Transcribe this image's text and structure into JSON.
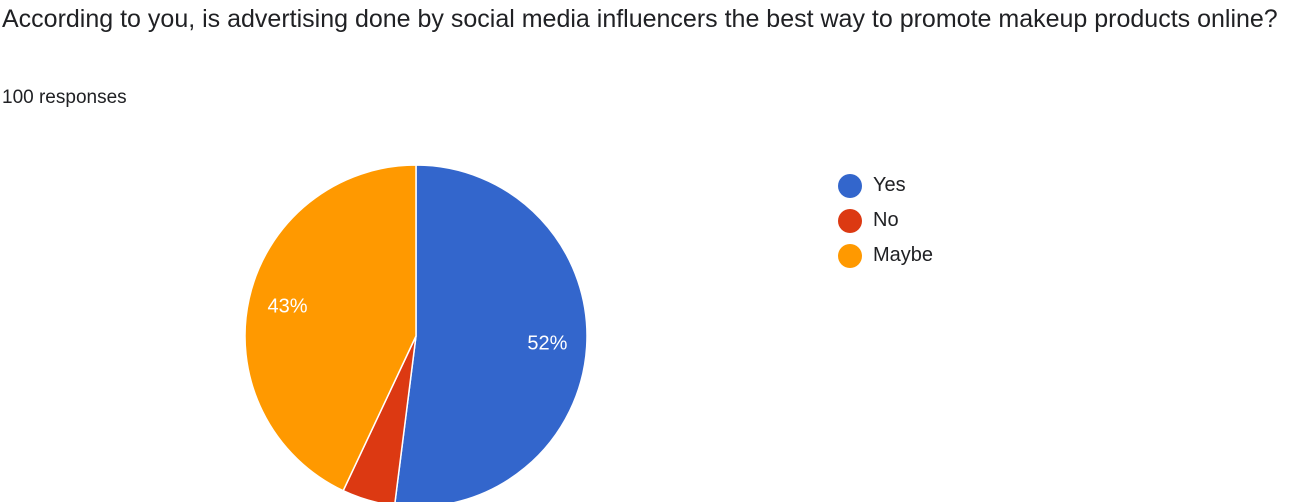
{
  "question": {
    "title": "According to you, is advertising done by social media influencers the best way to promote makeup products online?",
    "responses": "100 responses"
  },
  "chart_data": {
    "type": "pie",
    "categories": [
      "Yes",
      "No",
      "Maybe"
    ],
    "values": [
      52,
      5,
      43
    ],
    "labels": [
      "52%",
      "",
      "43%"
    ],
    "colors": [
      "#3366cc",
      "#dc3912",
      "#ff9900"
    ],
    "legend_position": "right",
    "start_angle_deg": 90,
    "direction": "clockwise"
  }
}
